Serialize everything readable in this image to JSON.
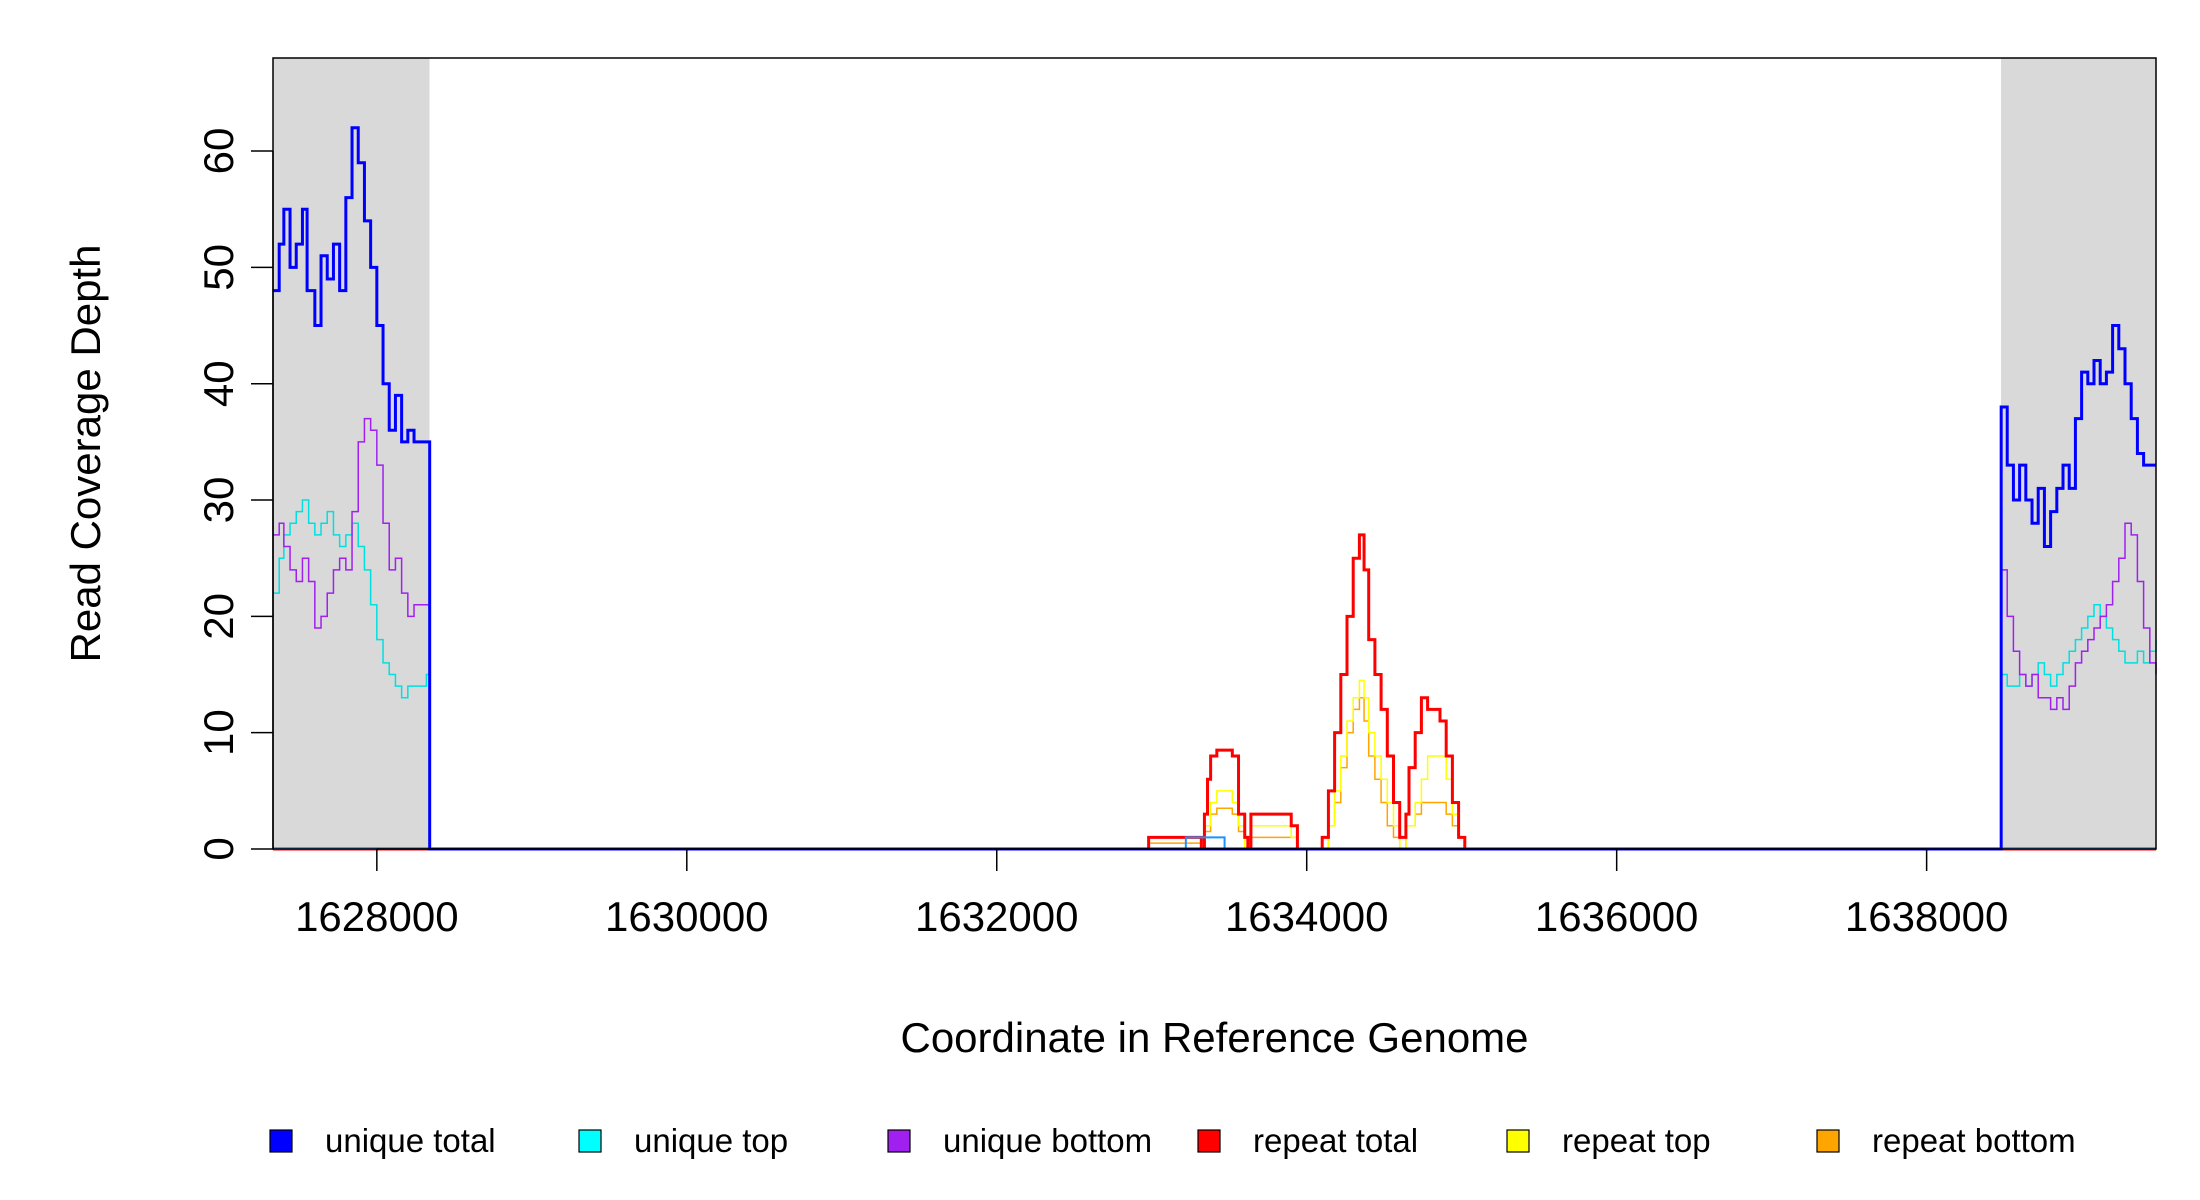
{
  "chart_data": {
    "type": "line",
    "title": "",
    "xlabel": "Coordinate in Reference Genome",
    "ylabel": "Read Coverage Depth",
    "xlim": [
      1627330,
      1639480
    ],
    "ylim": [
      0,
      68
    ],
    "x_ticks": [
      1628000,
      1630000,
      1632000,
      1634000,
      1636000,
      1638000
    ],
    "y_ticks": [
      0,
      10,
      20,
      30,
      40,
      50,
      60
    ],
    "shaded_regions": [
      [
        1627330,
        1628340
      ],
      [
        1638480,
        1639480
      ]
    ],
    "legend_position": "bottom",
    "series": [
      {
        "name": "unique total",
        "color": "#0000ff",
        "x": [
          1627330,
          1627370,
          1627400,
          1627440,
          1627480,
          1627520,
          1627550,
          1627600,
          1627640,
          1627680,
          1627720,
          1627760,
          1627800,
          1627840,
          1627880,
          1627920,
          1627960,
          1628000,
          1628040,
          1628080,
          1628120,
          1628160,
          1628200,
          1628240,
          1628280,
          1628320,
          1628340,
          1628341,
          1638480,
          1638481,
          1638520,
          1638560,
          1638600,
          1638640,
          1638680,
          1638720,
          1638760,
          1638800,
          1638840,
          1638880,
          1638920,
          1638960,
          1639000,
          1639040,
          1639080,
          1639120,
          1639160,
          1639200,
          1639240,
          1639280,
          1639320,
          1639360,
          1639400,
          1639440,
          1639480
        ],
        "y": [
          48,
          52,
          55,
          50,
          52,
          55,
          48,
          45,
          51,
          49,
          52,
          48,
          56,
          62,
          59,
          54,
          50,
          45,
          40,
          36,
          39,
          35,
          36,
          35,
          35,
          35,
          35,
          0,
          0,
          38,
          33,
          30,
          33,
          30,
          28,
          31,
          26,
          29,
          31,
          33,
          31,
          37,
          41,
          40,
          42,
          40,
          41,
          45,
          43,
          40,
          37,
          34,
          33,
          33,
          33
        ],
        "line_width": 3
      },
      {
        "name": "unique top",
        "color": "#00e0e0",
        "x": [
          1627330,
          1627370,
          1627400,
          1627440,
          1627480,
          1627520,
          1627560,
          1627600,
          1627640,
          1627680,
          1627720,
          1627760,
          1627800,
          1627840,
          1627880,
          1627920,
          1627960,
          1628000,
          1628040,
          1628080,
          1628120,
          1628160,
          1628200,
          1628240,
          1628280,
          1628320,
          1628340,
          1628341,
          1638480,
          1638481,
          1638520,
          1638560,
          1638600,
          1638640,
          1638680,
          1638720,
          1638760,
          1638800,
          1638840,
          1638880,
          1638920,
          1638960,
          1639000,
          1639040,
          1639080,
          1639120,
          1639160,
          1639200,
          1639240,
          1639280,
          1639320,
          1639360,
          1639400,
          1639440,
          1639480
        ],
        "y": [
          22,
          25,
          27,
          28,
          29,
          30,
          28,
          27,
          28,
          29,
          27,
          26,
          27,
          28,
          26,
          24,
          21,
          18,
          16,
          15,
          14,
          13,
          14,
          14,
          14,
          15,
          15,
          0,
          0,
          15,
          14,
          14,
          15,
          14,
          15,
          16,
          15,
          14,
          15,
          16,
          17,
          18,
          19,
          20,
          21,
          20,
          19,
          18,
          17,
          16,
          16,
          17,
          16,
          17,
          18
        ],
        "line_width": 1.5
      },
      {
        "name": "unique bottom",
        "color": "#a020f0",
        "x": [
          1627330,
          1627370,
          1627400,
          1627440,
          1627480,
          1627520,
          1627560,
          1627600,
          1627640,
          1627680,
          1627720,
          1627760,
          1627800,
          1627840,
          1627880,
          1627920,
          1627960,
          1628000,
          1628040,
          1628080,
          1628120,
          1628160,
          1628200,
          1628240,
          1628280,
          1628320,
          1628340,
          1628341,
          1638480,
          1638481,
          1638520,
          1638560,
          1638600,
          1638640,
          1638680,
          1638720,
          1638760,
          1638800,
          1638840,
          1638880,
          1638920,
          1638960,
          1639000,
          1639040,
          1639080,
          1639120,
          1639160,
          1639200,
          1639240,
          1639280,
          1639320,
          1639360,
          1639400,
          1639440,
          1639480
        ],
        "y": [
          27,
          28,
          26,
          24,
          23,
          25,
          23,
          19,
          20,
          22,
          24,
          25,
          24,
          29,
          35,
          37,
          36,
          33,
          28,
          24,
          25,
          22,
          20,
          21,
          21,
          21,
          21,
          0,
          0,
          24,
          20,
          17,
          15,
          14,
          15,
          13,
          13,
          12,
          13,
          12,
          14,
          16,
          17,
          18,
          19,
          20,
          21,
          23,
          25,
          28,
          27,
          23,
          19,
          16,
          15
        ],
        "line_width": 1.5
      },
      {
        "name": "repeat total",
        "color": "#ff0000",
        "x": [
          1627330,
          1632960,
          1632980,
          1633300,
          1633320,
          1633340,
          1633360,
          1633380,
          1633420,
          1633480,
          1633520,
          1633560,
          1633600,
          1633620,
          1633640,
          1633700,
          1633720,
          1633900,
          1633940,
          1634000,
          1634100,
          1634140,
          1634180,
          1634220,
          1634260,
          1634300,
          1634340,
          1634370,
          1634400,
          1634440,
          1634480,
          1634520,
          1634560,
          1634600,
          1634640,
          1634660,
          1634700,
          1634740,
          1634780,
          1634820,
          1634860,
          1634900,
          1634940,
          1634980,
          1635020,
          1635040,
          1639480
        ],
        "y": [
          0,
          0,
          1,
          1,
          0,
          3,
          6,
          8,
          8.5,
          8.5,
          8,
          3,
          1,
          0,
          3,
          3,
          3,
          2,
          0,
          0,
          1,
          5,
          10,
          15,
          20,
          25,
          27,
          24,
          18,
          15,
          12,
          8,
          4,
          1,
          3,
          7,
          10,
          13,
          12,
          12,
          11,
          8,
          4,
          1,
          0,
          0,
          0
        ],
        "line_width": 3
      },
      {
        "name": "repeat top",
        "color": "#ffff00",
        "x": [
          1627330,
          1633300,
          1633340,
          1633380,
          1633420,
          1633480,
          1633520,
          1633560,
          1633600,
          1633640,
          1633700,
          1633900,
          1633940,
          1634100,
          1634140,
          1634180,
          1634220,
          1634260,
          1634300,
          1634340,
          1634370,
          1634400,
          1634440,
          1634480,
          1634520,
          1634560,
          1634600,
          1634640,
          1634700,
          1634740,
          1634780,
          1634820,
          1634860,
          1634900,
          1634940,
          1634980,
          1635020,
          1639480
        ],
        "y": [
          0,
          0,
          2,
          4,
          5,
          5,
          4,
          2,
          0,
          2,
          2,
          1,
          0,
          0,
          2,
          5,
          8,
          11,
          13,
          14.5,
          13,
          10,
          8,
          6,
          4,
          2,
          0,
          2,
          4,
          6,
          8,
          8,
          8,
          6,
          3,
          1,
          0,
          0
        ],
        "line_width": 1.5
      },
      {
        "name": "repeat bottom",
        "color": "#ffa500",
        "x": [
          1627330,
          1632960,
          1632980,
          1633300,
          1633320,
          1633340,
          1633380,
          1633420,
          1633480,
          1633520,
          1633560,
          1633600,
          1633640,
          1633700,
          1633900,
          1633940,
          1634100,
          1634140,
          1634180,
          1634220,
          1634260,
          1634300,
          1634340,
          1634370,
          1634400,
          1634440,
          1634480,
          1634520,
          1634560,
          1634600,
          1634640,
          1634700,
          1634740,
          1634780,
          1634820,
          1634860,
          1634900,
          1634940,
          1634980,
          1635020,
          1639480
        ],
        "y": [
          0,
          0,
          0.5,
          0.5,
          0,
          1.5,
          3,
          3.5,
          3.5,
          3,
          1.5,
          0,
          1,
          1,
          1,
          0,
          0,
          2,
          4,
          7,
          10,
          12,
          13,
          11,
          8,
          6,
          4,
          2,
          1,
          0,
          2,
          3,
          4,
          4,
          4,
          4,
          3,
          2,
          1,
          0,
          0
        ],
        "line_width": 1.5
      },
      {
        "name": "",
        "color": "#1e90ff",
        "x": [
          1627330,
          1633200,
          1633220,
          1633450,
          1633470,
          1639480
        ],
        "y": [
          0,
          0,
          1,
          1,
          0,
          0
        ],
        "line_width": 2
      }
    ],
    "legend": [
      {
        "label": "unique total",
        "color": "#0000ff"
      },
      {
        "label": "unique top",
        "color": "#00ffff"
      },
      {
        "label": "unique bottom",
        "color": "#a020f0"
      },
      {
        "label": "repeat total",
        "color": "#ff0000"
      },
      {
        "label": "repeat top",
        "color": "#ffff00"
      },
      {
        "label": "repeat bottom",
        "color": "#ffa500"
      }
    ]
  }
}
